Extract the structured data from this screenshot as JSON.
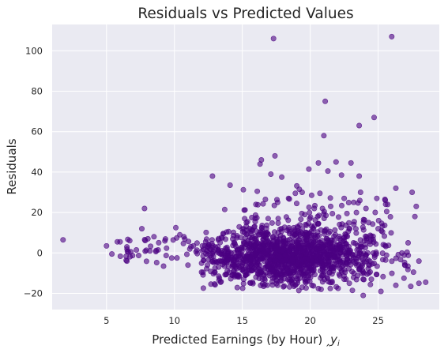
{
  "chart_data": {
    "type": "scatter",
    "title": "Residuals vs Predicted Values",
    "xlabel": "Predicted Earnings (by Hour) ",
    "xlabel_symbol": "y",
    "xlabel_subscript": "i",
    "ylabel": "Residuals",
    "xlim": [
      1,
      29.5
    ],
    "ylim": [
      -28,
      113
    ],
    "xticks": [
      5,
      10,
      15,
      20,
      25
    ],
    "yticks": [
      -20,
      0,
      20,
      40,
      60,
      80,
      100
    ],
    "grid": true,
    "background": "#eaeaf2",
    "point_color": "#4b0082",
    "series": [
      {
        "notable_points": [
          [
            1.8,
            6.5
          ],
          [
            5.0,
            3.5
          ],
          [
            5.4,
            -0.5
          ],
          [
            5.8,
            5.5
          ],
          [
            6.5,
            -4
          ],
          [
            6.5,
            3
          ],
          [
            7.6,
            12
          ],
          [
            7.8,
            22
          ],
          [
            8.2,
            1
          ],
          [
            8.5,
            8
          ],
          [
            9.2,
            -6.5
          ],
          [
            10.1,
            12.5
          ],
          [
            10.4,
            9
          ],
          [
            12.3,
            5.5
          ],
          [
            12.8,
            38
          ],
          [
            13.2,
            3
          ],
          [
            13.7,
            21.5
          ],
          [
            14.1,
            33.5
          ],
          [
            15.3,
            15
          ],
          [
            15.7,
            17.5
          ],
          [
            16.0,
            24
          ],
          [
            16.1,
            30.5
          ],
          [
            16.3,
            44
          ],
          [
            16.4,
            46
          ],
          [
            16.7,
            26.5
          ],
          [
            16.9,
            17
          ],
          [
            17.1,
            39
          ],
          [
            17.3,
            106
          ],
          [
            17.4,
            48
          ],
          [
            17.6,
            25
          ],
          [
            17.9,
            37.5
          ],
          [
            18.4,
            27
          ],
          [
            18.9,
            29.5
          ],
          [
            19.0,
            24.5
          ],
          [
            19.2,
            31.5
          ],
          [
            19.4,
            30
          ],
          [
            19.6,
            19
          ],
          [
            19.9,
            41.5
          ],
          [
            20.1,
            28.5
          ],
          [
            20.3,
            22
          ],
          [
            20.6,
            44.5
          ],
          [
            20.9,
            22
          ],
          [
            21.0,
            58
          ],
          [
            21.1,
            75
          ],
          [
            21.3,
            40.5
          ],
          [
            21.5,
            23
          ],
          [
            21.9,
            45
          ],
          [
            22.3,
            38.5
          ],
          [
            22.5,
            27
          ],
          [
            22.7,
            19.5
          ],
          [
            23.0,
            44.5
          ],
          [
            23.2,
            25
          ],
          [
            23.4,
            20
          ],
          [
            23.6,
            63
          ],
          [
            23.6,
            38
          ],
          [
            23.7,
            30
          ],
          [
            24.1,
            22
          ],
          [
            24.3,
            15
          ],
          [
            24.7,
            67
          ],
          [
            24.9,
            27
          ],
          [
            25.0,
            12
          ],
          [
            25.5,
            26.5
          ],
          [
            25.7,
            24
          ],
          [
            26.0,
            107
          ],
          [
            26.3,
            32
          ],
          [
            27.2,
            5
          ],
          [
            27.5,
            30
          ],
          [
            27.7,
            18
          ],
          [
            27.8,
            23
          ],
          [
            28.0,
            -4
          ],
          [
            28.0,
            -15
          ],
          [
            28.5,
            -14.5
          ],
          [
            17.6,
            -16
          ],
          [
            19.4,
            -17
          ],
          [
            20.8,
            -18
          ],
          [
            23.1,
            -18.5
          ],
          [
            23.9,
            -21
          ],
          [
            25.2,
            -19
          ],
          [
            26.3,
            -16
          ],
          [
            27.4,
            -16.5
          ],
          [
            24.5,
            -13
          ],
          [
            22.5,
            -13
          ],
          [
            18.5,
            -13
          ],
          [
            16.0,
            -12
          ],
          [
            13.8,
            -10.5
          ],
          [
            12.0,
            -9.5
          ],
          [
            15.1,
            -13
          ],
          [
            21.6,
            -14
          ],
          [
            26.9,
            -12.5
          ],
          [
            27.6,
            -9.5
          ],
          [
            11.0,
            -6
          ],
          [
            9.8,
            -2.5
          ],
          [
            8.8,
            1.5
          ],
          [
            7.2,
            1.5
          ],
          [
            6.0,
            5.5
          ],
          [
            6.6,
            0.5
          ],
          [
            9.3,
            6
          ],
          [
            10.7,
            8
          ],
          [
            11.4,
            3.5
          ],
          [
            12.6,
            2
          ]
        ]
      }
    ]
  }
}
